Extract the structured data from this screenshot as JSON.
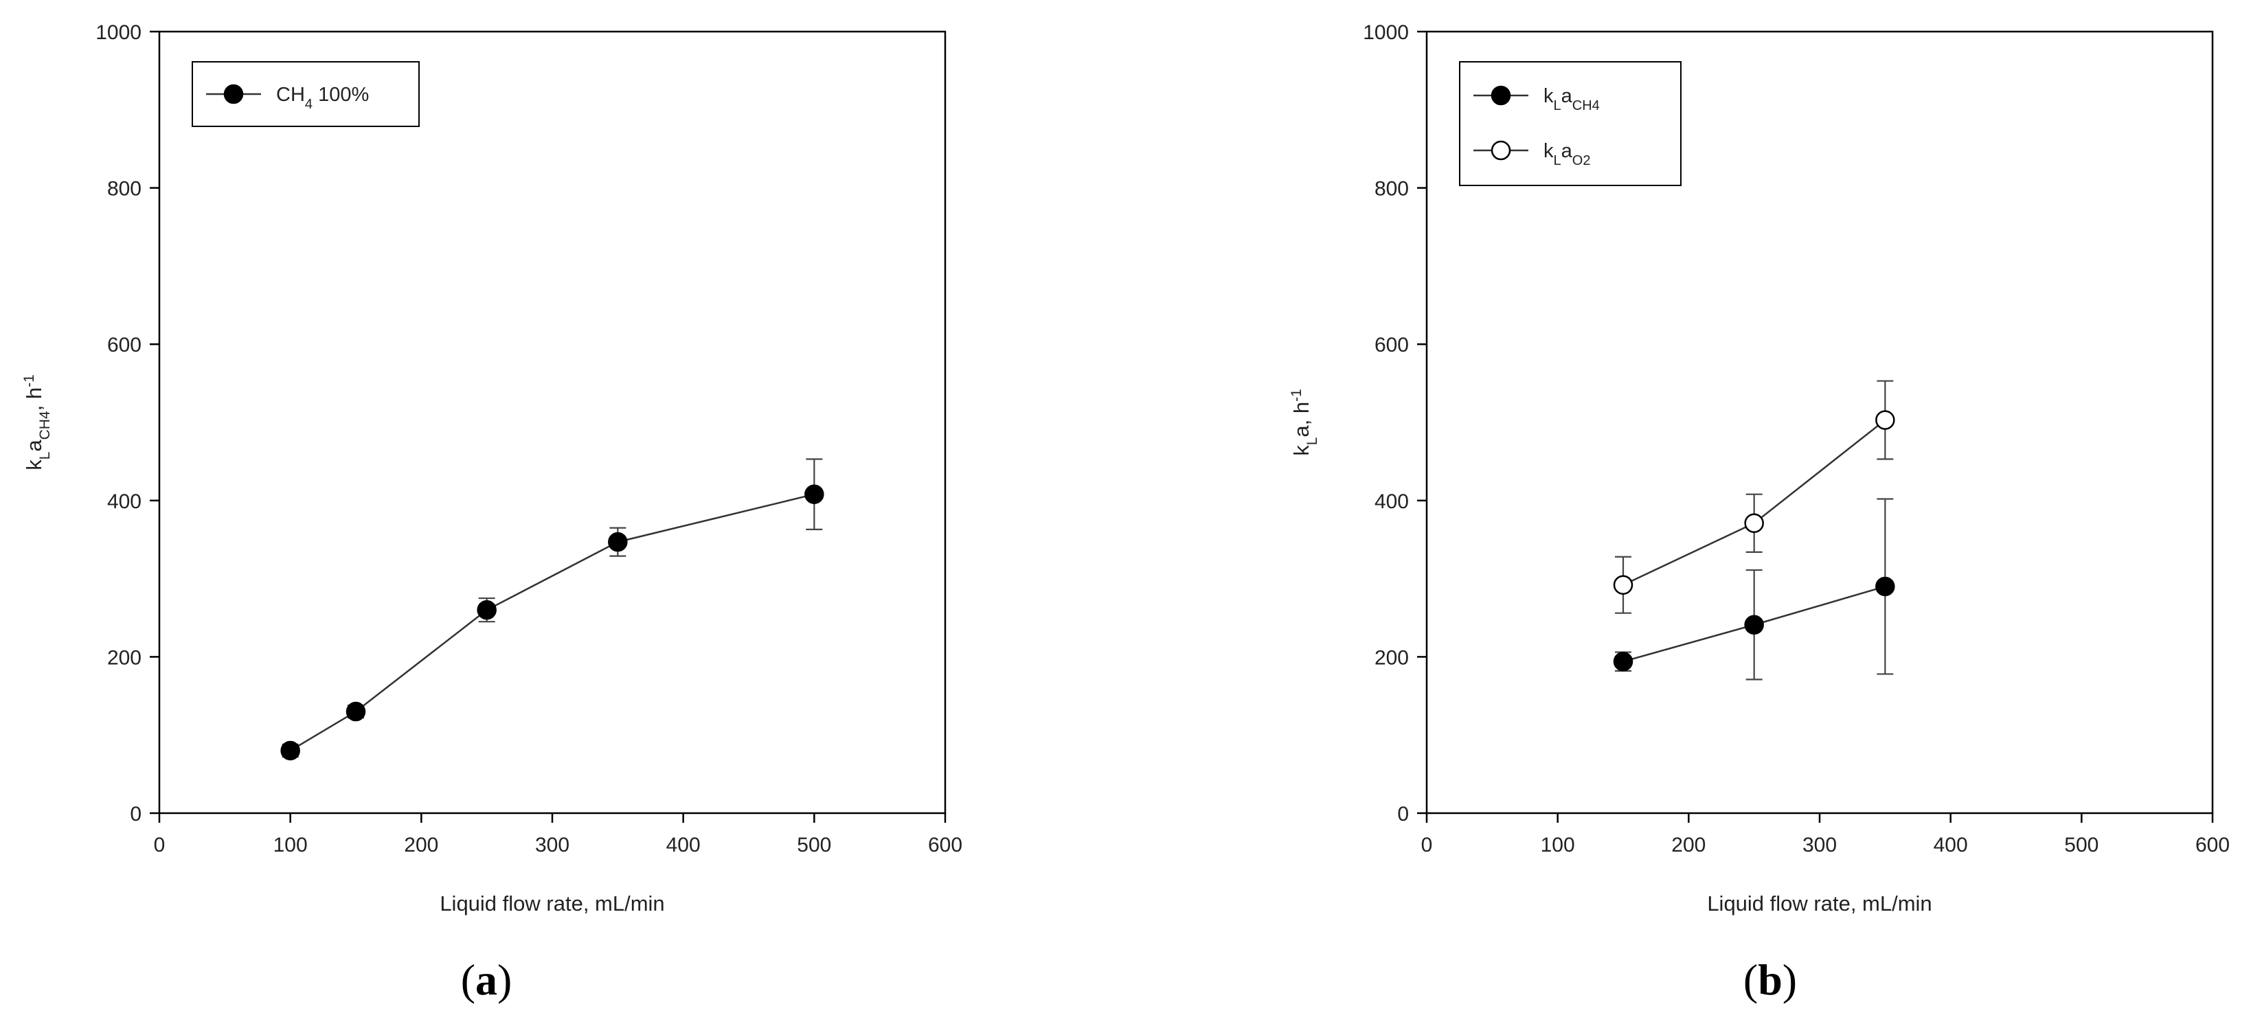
{
  "chart_data": [
    {
      "panel": "a",
      "type": "line",
      "xlabel": "Liquid flow rate, mL/min",
      "ylabel": {
        "base": "k",
        "sub1": "L",
        "mid": "a",
        "sub2": "CH4",
        "tail": ", h",
        "sup": "-1"
      },
      "xlim": [
        0,
        600
      ],
      "ylim": [
        0,
        1000
      ],
      "xticks": [
        0,
        100,
        200,
        300,
        400,
        500,
        600
      ],
      "yticks": [
        0,
        200,
        400,
        600,
        800,
        1000
      ],
      "grid": false,
      "legend_position": "top-left",
      "series": [
        {
          "legend": {
            "base": "CH",
            "sub": "4",
            "tail": " 100%"
          },
          "marker": "filled-circle",
          "color": "#000000",
          "x": [
            100,
            150,
            250,
            350,
            500
          ],
          "y": [
            80,
            130,
            260,
            347,
            408
          ],
          "err": [
            8,
            8,
            15,
            18,
            45
          ]
        }
      ]
    },
    {
      "panel": "b",
      "type": "line",
      "xlabel": "Liquid flow rate, mL/min",
      "ylabel": {
        "base": "k",
        "sub1": "L",
        "mid": "a, h",
        "sup": "-1"
      },
      "xlim": [
        0,
        600
      ],
      "ylim": [
        0,
        1000
      ],
      "xticks": [
        0,
        100,
        200,
        300,
        400,
        500,
        600
      ],
      "yticks": [
        0,
        200,
        400,
        600,
        800,
        1000
      ],
      "grid": false,
      "legend_position": "top-left",
      "series": [
        {
          "legend": {
            "base": "k",
            "sub1": "L",
            "mid": "a",
            "sub2": "CH4"
          },
          "marker": "filled-circle",
          "color": "#000000",
          "x": [
            150,
            250,
            350
          ],
          "y": [
            194,
            241,
            290
          ],
          "err": [
            12,
            70,
            112
          ]
        },
        {
          "legend": {
            "base": "k",
            "sub1": "L",
            "mid": "a",
            "sub2": "O2"
          },
          "marker": "open-circle",
          "color": "#000000",
          "x": [
            150,
            250,
            350
          ],
          "y": [
            292,
            371,
            503
          ],
          "err": [
            36,
            37,
            50
          ]
        }
      ]
    }
  ],
  "captions": {
    "a": {
      "open": "(",
      "letter": "a",
      "close": ")"
    },
    "b": {
      "open": "(",
      "letter": "b",
      "close": ")"
    }
  }
}
